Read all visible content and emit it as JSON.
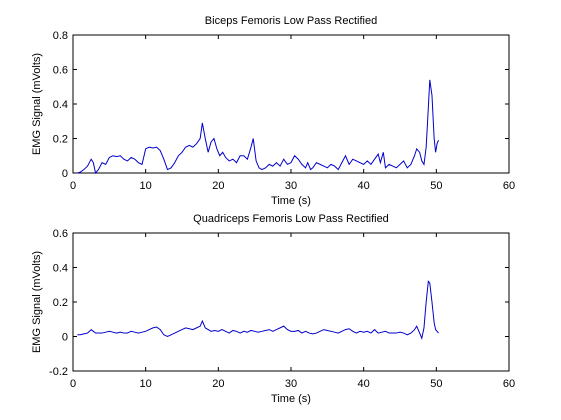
{
  "chart_data": [
    {
      "type": "line",
      "title": "Biceps Femoris Low Pass Rectified",
      "xlabel": "Time (s)",
      "ylabel": "EMG Signal (mVolts)",
      "xlim": [
        0,
        60
      ],
      "ylim": [
        0,
        0.8
      ],
      "xticks": [
        "0",
        "10",
        "20",
        "30",
        "40",
        "50",
        "60"
      ],
      "yticks": [
        "0",
        "0.2",
        "0.4",
        "0.6",
        "0.8"
      ],
      "grid": false,
      "color": "#0000cc",
      "series": [
        {
          "x": [
            0.6,
            1.0,
            1.5,
            2.0,
            2.5,
            2.8,
            3.1,
            3.5,
            4.0,
            4.5,
            5.0,
            5.5,
            6.0,
            6.5,
            7.0,
            7.5,
            8.0,
            8.5,
            9.0,
            9.5,
            10.0,
            10.5,
            11.0,
            11.5,
            12.0,
            12.5,
            13.0,
            13.5,
            14.0,
            14.5,
            15.0,
            15.5,
            16.0,
            16.5,
            17.0,
            17.5,
            17.8,
            18.2,
            18.6,
            19.0,
            19.4,
            19.8,
            20.2,
            20.6,
            21.0,
            21.5,
            22.0,
            22.5,
            23.0,
            23.5,
            24.0,
            24.5,
            24.8,
            25.2,
            25.6,
            26.0,
            26.5,
            27.0,
            27.5,
            28.0,
            28.5,
            29.0,
            29.5,
            30.0,
            30.5,
            31.0,
            31.5,
            32.0,
            32.3,
            32.7,
            33.0,
            33.5,
            34.0,
            34.5,
            35.0,
            35.5,
            36.0,
            36.5,
            37.0,
            37.5,
            38.0,
            38.5,
            39.0,
            39.5,
            40.0,
            40.5,
            41.0,
            41.5,
            42.0,
            42.3,
            42.7,
            43.0,
            43.5,
            44.0,
            44.5,
            45.0,
            45.5,
            46.0,
            46.5,
            47.0,
            47.3,
            47.7,
            48.0,
            48.3,
            48.6,
            48.9,
            49.1,
            49.4,
            49.7,
            49.9,
            50.1,
            50.3
          ],
          "y": [
            0.0,
            0.005,
            0.02,
            0.04,
            0.08,
            0.06,
            0.0,
            0.02,
            0.06,
            0.05,
            0.09,
            0.1,
            0.095,
            0.1,
            0.08,
            0.07,
            0.09,
            0.08,
            0.06,
            0.05,
            0.14,
            0.15,
            0.145,
            0.15,
            0.13,
            0.08,
            0.02,
            0.03,
            0.06,
            0.1,
            0.12,
            0.15,
            0.16,
            0.15,
            0.17,
            0.2,
            0.29,
            0.2,
            0.12,
            0.18,
            0.2,
            0.14,
            0.1,
            0.12,
            0.09,
            0.07,
            0.08,
            0.06,
            0.1,
            0.1,
            0.08,
            0.15,
            0.2,
            0.07,
            0.03,
            0.02,
            0.03,
            0.05,
            0.04,
            0.06,
            0.04,
            0.08,
            0.05,
            0.06,
            0.1,
            0.08,
            0.05,
            0.03,
            0.06,
            0.02,
            0.03,
            0.06,
            0.05,
            0.04,
            0.03,
            0.05,
            0.04,
            0.02,
            0.06,
            0.1,
            0.05,
            0.08,
            0.07,
            0.06,
            0.05,
            0.07,
            0.05,
            0.08,
            0.11,
            0.06,
            0.12,
            0.03,
            0.05,
            0.04,
            0.03,
            0.05,
            0.07,
            0.03,
            0.05,
            0.1,
            0.14,
            0.12,
            0.07,
            0.05,
            0.15,
            0.38,
            0.54,
            0.45,
            0.2,
            0.12,
            0.17,
            0.19
          ]
        }
      ]
    },
    {
      "type": "line",
      "title": "Quadriceps Femoris Low Pass Rectified",
      "xlabel": "Time (s)",
      "ylabel": "EMG Signal (mVolts)",
      "xlim": [
        0,
        60
      ],
      "ylim": [
        -0.2,
        0.6
      ],
      "xticks": [
        "0",
        "10",
        "20",
        "30",
        "40",
        "50",
        "60"
      ],
      "yticks": [
        "-0.2",
        "0",
        "0.2",
        "0.4",
        "0.6"
      ],
      "grid": false,
      "color": "#0000cc",
      "series": [
        {
          "x": [
            0.6,
            1.0,
            1.5,
            2.0,
            2.5,
            2.8,
            3.1,
            3.5,
            4.0,
            4.5,
            5.0,
            5.5,
            6.0,
            6.5,
            7.0,
            7.5,
            8.0,
            8.5,
            9.0,
            9.5,
            10.0,
            10.5,
            11.0,
            11.5,
            12.0,
            12.5,
            13.0,
            13.5,
            14.0,
            14.5,
            15.0,
            15.5,
            16.0,
            16.5,
            17.0,
            17.5,
            17.8,
            18.2,
            18.6,
            19.0,
            19.5,
            20.0,
            20.5,
            21.0,
            21.5,
            22.0,
            22.5,
            23.0,
            23.5,
            24.0,
            24.5,
            25.0,
            25.5,
            26.0,
            26.5,
            27.0,
            27.5,
            28.0,
            28.5,
            29.0,
            29.5,
            30.0,
            30.5,
            31.0,
            31.5,
            32.0,
            32.5,
            33.0,
            33.5,
            34.0,
            34.5,
            35.0,
            35.5,
            36.0,
            36.5,
            37.0,
            37.5,
            38.0,
            38.5,
            39.0,
            39.5,
            40.0,
            40.5,
            41.0,
            41.5,
            42.0,
            42.5,
            43.0,
            43.5,
            44.0,
            44.5,
            45.0,
            45.5,
            46.0,
            46.5,
            47.0,
            47.3,
            47.7,
            48.0,
            48.3,
            48.6,
            48.9,
            49.1,
            49.4,
            49.7,
            49.9,
            50.1,
            50.3
          ],
          "y": [
            0.01,
            0.01,
            0.015,
            0.02,
            0.04,
            0.03,
            0.02,
            0.02,
            0.02,
            0.025,
            0.03,
            0.025,
            0.02,
            0.025,
            0.02,
            0.02,
            0.03,
            0.025,
            0.02,
            0.025,
            0.03,
            0.04,
            0.05,
            0.055,
            0.04,
            0.01,
            0.0,
            0.01,
            0.02,
            0.03,
            0.04,
            0.05,
            0.045,
            0.04,
            0.05,
            0.06,
            0.09,
            0.05,
            0.04,
            0.03,
            0.035,
            0.03,
            0.04,
            0.03,
            0.02,
            0.035,
            0.03,
            0.02,
            0.03,
            0.025,
            0.035,
            0.03,
            0.025,
            0.03,
            0.035,
            0.04,
            0.03,
            0.04,
            0.05,
            0.06,
            0.04,
            0.03,
            0.03,
            0.035,
            0.02,
            0.03,
            0.02,
            0.015,
            0.02,
            0.03,
            0.04,
            0.035,
            0.03,
            0.025,
            0.02,
            0.03,
            0.04,
            0.045,
            0.03,
            0.02,
            0.03,
            0.025,
            0.03,
            0.02,
            0.04,
            0.02,
            0.025,
            0.03,
            0.02,
            0.02,
            0.02,
            0.025,
            0.02,
            0.01,
            0.02,
            0.04,
            0.06,
            0.02,
            -0.01,
            0.05,
            0.2,
            0.32,
            0.31,
            0.2,
            0.08,
            0.04,
            0.03,
            0.02
          ]
        }
      ]
    }
  ]
}
